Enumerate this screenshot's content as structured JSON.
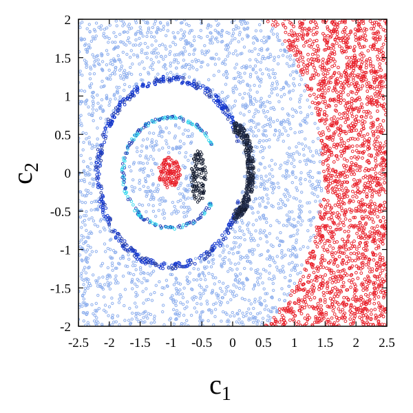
{
  "chart_data": {
    "type": "scatter",
    "title": "",
    "xlabel": "c",
    "xlabel_sub": "1",
    "ylabel": "c",
    "ylabel_sub": "2",
    "xlim": [
      -2.5,
      2.5
    ],
    "ylim": [
      -2,
      2
    ],
    "xticks": [
      -2.5,
      -2,
      -1.5,
      -1,
      -0.5,
      0,
      0.5,
      1,
      1.5,
      2,
      2.5
    ],
    "yticks": [
      -2,
      -1.5,
      -1,
      -0.5,
      0,
      0.5,
      1,
      1.5,
      2
    ],
    "grid": false,
    "legend": "none",
    "colors": {
      "background_points": "#8fb0ee",
      "escape_region": "#e8202a",
      "outer_ring": "#1538d0",
      "inner_ring_light": "#33d8ee",
      "inner_ring_dark": "#2540b8",
      "crescent": "#141c30",
      "center_blob": "#e8202a"
    },
    "series": [
      {
        "color_key": "background_points",
        "shape": "fill",
        "region": "all c with |c - (-1)| > 1.25 and |c - (-1)| < 2.45 (approx.), plus the annulus 0.55-1.05 and the core below 0.5"
      },
      {
        "color_key": "escape_region",
        "shape": "ellipse-boundary",
        "boundary_center": [
          -1,
          0
        ],
        "boundary_radius_x": 2.45,
        "boundary_radius_y": 2.55,
        "points": "all c outside the boundary"
      },
      {
        "color_key": "outer_ring",
        "shape": "ellipse",
        "center": [
          -1,
          0
        ],
        "radius_x": 1.18,
        "radius_y": 1.22,
        "thickness": 0.06
      },
      {
        "color_key": "inner_ring_light",
        "shape": "ellipse",
        "center": [
          -1,
          0
        ],
        "radius_x": 0.78,
        "radius_y": 0.72,
        "thickness": 0.04
      },
      {
        "color_key": "crescent",
        "shape": "blob",
        "points_xy": [
          [
            0.2,
            0.3
          ],
          [
            0.3,
            0.1
          ],
          [
            0.3,
            -0.2
          ],
          [
            0.2,
            -0.4
          ],
          [
            -0.6,
            0.05
          ],
          [
            -0.55,
            -0.25
          ]
        ]
      },
      {
        "color_key": "center_blob",
        "shape": "ellipse",
        "center": [
          -1.03,
          0
        ],
        "radius_x": 0.18,
        "radius_y": 0.2
      }
    ]
  }
}
